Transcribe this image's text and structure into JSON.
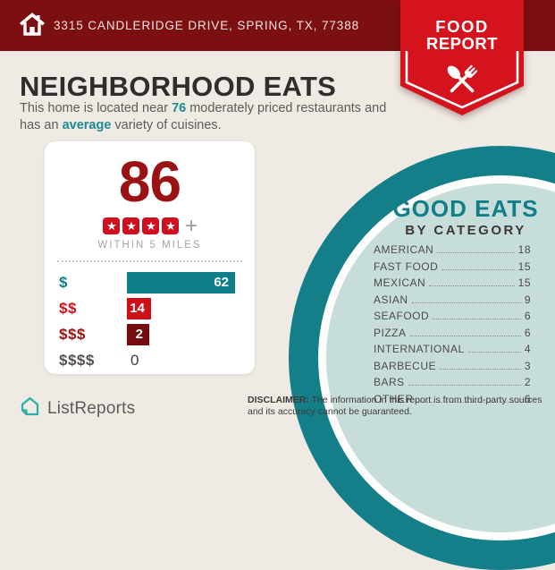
{
  "colors": {
    "header_bg": "#7B0F12",
    "badge_red": "#D5131D",
    "accent_teal": "#0E7F88",
    "score_red": "#9A1213",
    "bright_red": "#CE1118",
    "dark_maroon": "#750C0E",
    "circle_ring_teal": "#157F89",
    "circle_inner_teal": "#C7DDDA",
    "page_bg": "#EFEAE4",
    "star_red": "#CF1020"
  },
  "header": {
    "address": "3315 CANDLERIDGE DRIVE, SPRING, TX, 77388"
  },
  "badge": {
    "title_line1": "FOOD",
    "title_line2": "REPORT"
  },
  "main": {
    "headline": "NEIGHBORHOOD EATS",
    "intro_pre": "This home is located near ",
    "intro_count": "76",
    "intro_mid": " moderately priced restaurants and has an ",
    "intro_accent": "average",
    "intro_post": " variety of cuisines."
  },
  "score_card": {
    "score": "86",
    "star_count": 4,
    "plus_label": "+",
    "radius_label": "WITHIN 5 MILES"
  },
  "good_eats": {
    "title": "GOOD EATS",
    "subtitle": "BY CATEGORY"
  },
  "footer": {
    "brand": "ListReports",
    "disclaimer_label": "DISCLAIMER:",
    "disclaimer_text": " The information in this report is from third-party sources and its accuracy cannot be guaranteed."
  },
  "chart_data": [
    {
      "type": "bar",
      "orientation": "horizontal",
      "title": "",
      "categories": [
        "$",
        "$$",
        "$$$",
        "$$$$"
      ],
      "values": [
        62,
        14,
        2,
        0
      ],
      "xlim": [
        0,
        62
      ],
      "bar_colors": [
        "#0E7F88",
        "#CE1118",
        "#750C0E",
        null
      ],
      "label_colors": [
        "#0E7F88",
        "#CE1118",
        "#9A1213",
        "#55504E"
      ],
      "value_label_position": "inside-end"
    },
    {
      "type": "table",
      "title": "GOOD EATS",
      "subtitle": "BY CATEGORY",
      "categories": [
        "AMERICAN",
        "FAST FOOD",
        "MEXICAN",
        "ASIAN",
        "SEAFOOD",
        "PIZZA",
        "INTERNATIONAL",
        "BARBECUE",
        "BARS",
        "OTHER"
      ],
      "values": [
        18,
        15,
        15,
        9,
        6,
        6,
        4,
        3,
        2,
        6
      ],
      "leader_style": "dotted"
    }
  ]
}
